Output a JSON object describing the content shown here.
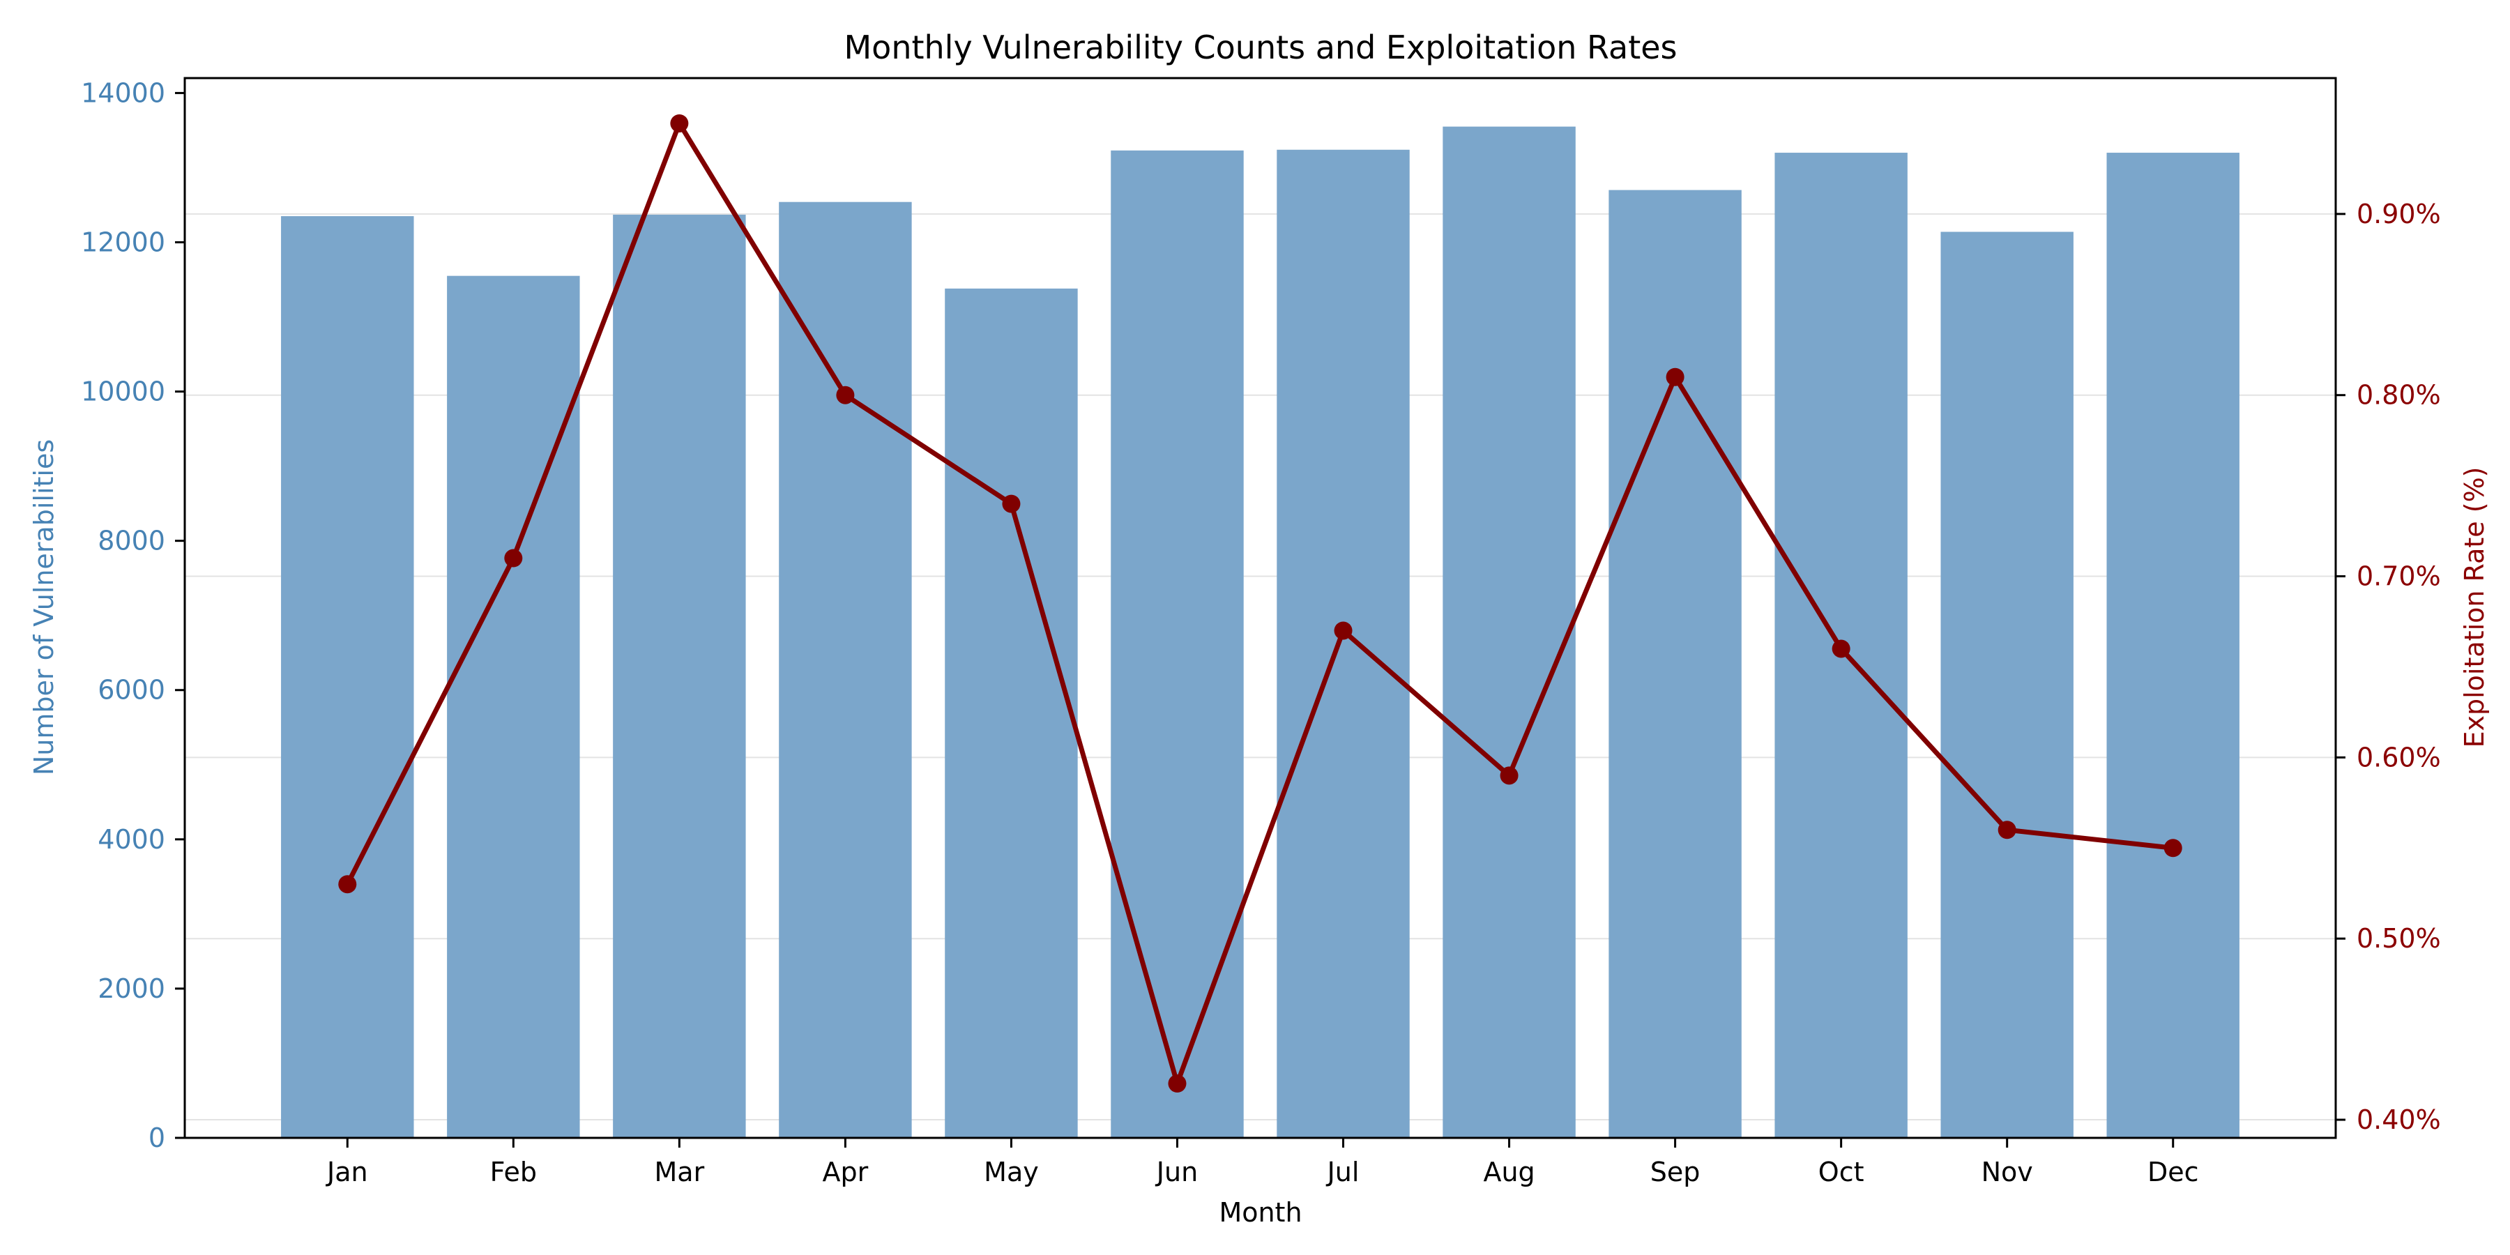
{
  "chart_data": {
    "type": "bar",
    "title": "Monthly Vulnerability Counts and Exploitation Rates",
    "xlabel": "Month",
    "ylabel_left": "Number of Vulnerabilities",
    "ylabel_right": "Exploitation Rate (%)",
    "categories": [
      "Jan",
      "Feb",
      "Mar",
      "Apr",
      "May",
      "Jun",
      "Jul",
      "Aug",
      "Sep",
      "Oct",
      "Nov",
      "Dec"
    ],
    "series": [
      {
        "type": "bar",
        "axis": "left",
        "color": "#7ba6cb",
        "values": [
          12350,
          11550,
          12370,
          12540,
          11380,
          13230,
          13240,
          13550,
          12700,
          13200,
          12140,
          13200
        ]
      },
      {
        "type": "line",
        "axis": "right",
        "color": "#800000",
        "values": [
          0.53,
          0.71,
          0.95,
          0.8,
          0.74,
          0.42,
          0.67,
          0.59,
          0.81,
          0.66,
          0.56,
          0.55
        ]
      }
    ],
    "ylim_left": [
      0,
      14200
    ],
    "yticks_left": [
      0,
      2000,
      4000,
      6000,
      8000,
      10000,
      12000,
      14000
    ],
    "ylim_right": [
      0.39,
      0.975
    ],
    "yticks_right": [
      0.4,
      0.5,
      0.6,
      0.7,
      0.8,
      0.9
    ],
    "ytick_format_right": "percent_2dp",
    "grid": "horizontal-right-axis",
    "left_axis_color": "#4682b4",
    "right_axis_color": "#8b0000"
  }
}
